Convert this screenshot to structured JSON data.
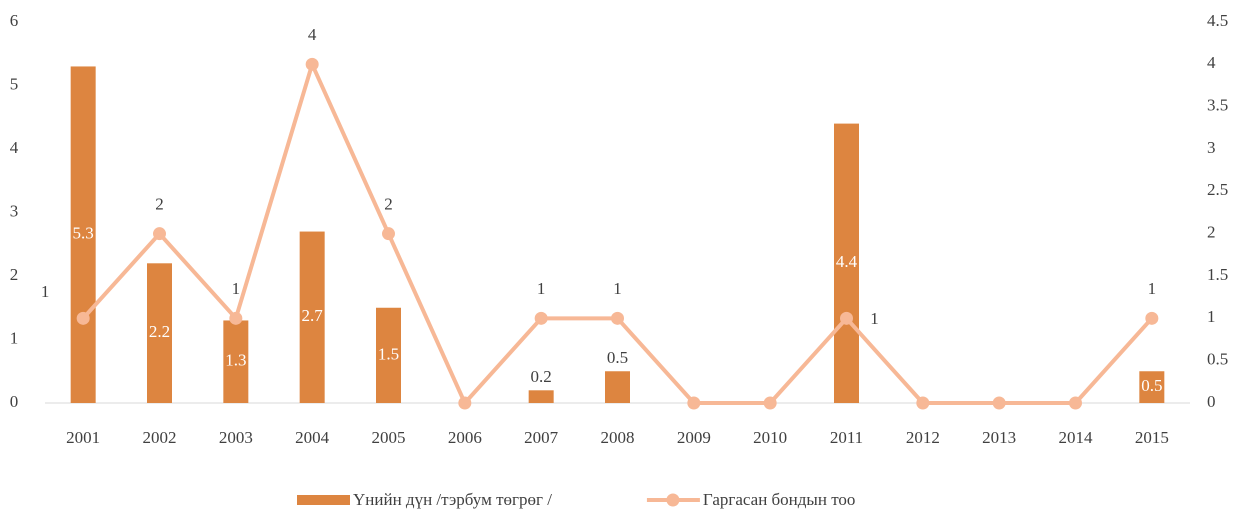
{
  "chart_data": {
    "type": "bar_line",
    "categories": [
      "2001",
      "2002",
      "2003",
      "2004",
      "2005",
      "2006",
      "2007",
      "2008",
      "2009",
      "2010",
      "2011",
      "2012",
      "2013",
      "2014",
      "2015"
    ],
    "series": [
      {
        "name": "Үнийн дүн /тэрбум төгрөг /",
        "type": "bar",
        "color": "#dd8540",
        "values": [
          5.3,
          2.2,
          1.3,
          2.7,
          1.5,
          0,
          0.2,
          0.5,
          0,
          0,
          4.4,
          0,
          0,
          0,
          0.5
        ],
        "value_labels": [
          "5.3",
          "2.2",
          "1.3",
          "2.7",
          "1.5",
          null,
          "0.2",
          "0.5",
          null,
          null,
          "4.4",
          null,
          null,
          null,
          "0.5"
        ]
      },
      {
        "name": "Гаргасан бондын тоо",
        "type": "line",
        "axis": "y2",
        "color": "#f7b896",
        "values": [
          1,
          2,
          1,
          4,
          2,
          0,
          1,
          1,
          0,
          0,
          1,
          0,
          0,
          0,
          1
        ],
        "value_labels": [
          "1",
          "2",
          "1",
          "4",
          "2",
          null,
          "1",
          "1",
          null,
          null,
          "1",
          null,
          null,
          null,
          "1"
        ]
      }
    ],
    "ylim": [
      0,
      6
    ],
    "yticks": [
      0,
      1,
      2,
      3,
      4,
      5,
      6
    ],
    "y2lim": [
      0,
      4.5
    ],
    "y2ticks": [
      0,
      0.5,
      1,
      1.5,
      2,
      2.5,
      3,
      3.5,
      4,
      4.5
    ],
    "legend": "bottom"
  }
}
